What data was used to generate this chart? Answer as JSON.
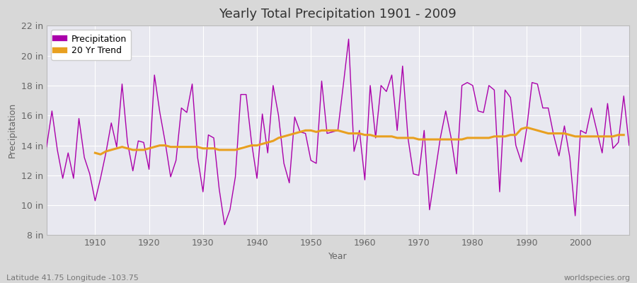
{
  "title": "Yearly Total Precipitation 1901 - 2009",
  "xlabel": "Year",
  "ylabel": "Precipitation",
  "bottom_left_label": "Latitude 41.75 Longitude -103.75",
  "bottom_right_label": "worldspecies.org",
  "ylim": [
    8,
    22
  ],
  "yticks": [
    8,
    10,
    12,
    14,
    16,
    18,
    20,
    22
  ],
  "ytick_labels": [
    "8 in",
    "10 in",
    "12 in",
    "14 in",
    "16 in",
    "18 in",
    "20 in",
    "22 in"
  ],
  "precip_color": "#AA00AA",
  "trend_color": "#E8A020",
  "fig_bg_color": "#D8D8D8",
  "plot_bg_color": "#E8E8F0",
  "grid_color": "#FFFFFF",
  "years": [
    1901,
    1902,
    1903,
    1904,
    1905,
    1906,
    1907,
    1908,
    1909,
    1910,
    1911,
    1912,
    1913,
    1914,
    1915,
    1916,
    1917,
    1918,
    1919,
    1920,
    1921,
    1922,
    1923,
    1924,
    1925,
    1926,
    1927,
    1928,
    1929,
    1930,
    1931,
    1932,
    1933,
    1934,
    1935,
    1936,
    1937,
    1938,
    1939,
    1940,
    1941,
    1942,
    1943,
    1944,
    1945,
    1946,
    1947,
    1948,
    1949,
    1950,
    1951,
    1952,
    1953,
    1954,
    1955,
    1956,
    1957,
    1958,
    1959,
    1960,
    1961,
    1962,
    1963,
    1964,
    1965,
    1966,
    1967,
    1968,
    1969,
    1970,
    1971,
    1972,
    1973,
    1974,
    1975,
    1976,
    1977,
    1978,
    1979,
    1980,
    1981,
    1982,
    1983,
    1984,
    1985,
    1986,
    1987,
    1988,
    1989,
    1990,
    1991,
    1992,
    1993,
    1994,
    1995,
    1996,
    1997,
    1998,
    1999,
    2000,
    2001,
    2002,
    2003,
    2004,
    2005,
    2006,
    2007,
    2008,
    2009
  ],
  "precipitation": [
    13.9,
    16.3,
    13.7,
    11.8,
    13.5,
    11.8,
    15.8,
    13.2,
    12.1,
    10.3,
    11.8,
    13.5,
    15.5,
    13.9,
    18.1,
    14.2,
    12.3,
    14.3,
    14.2,
    12.4,
    18.7,
    16.2,
    14.2,
    11.9,
    13.0,
    16.5,
    16.2,
    18.1,
    13.2,
    10.9,
    14.7,
    14.5,
    11.1,
    8.7,
    9.7,
    11.9,
    17.4,
    17.4,
    14.2,
    11.8,
    16.1,
    13.5,
    18.0,
    16.0,
    12.8,
    11.5,
    15.9,
    14.9,
    14.8,
    13.0,
    12.8,
    18.3,
    14.8,
    14.9,
    15.0,
    18.0,
    21.1,
    13.6,
    15.0,
    11.7,
    18.0,
    14.5,
    18.0,
    17.6,
    18.7,
    15.0,
    19.3,
    14.5,
    12.1,
    12.0,
    15.0,
    9.7,
    12.1,
    14.5,
    16.3,
    14.5,
    12.1,
    18.0,
    18.2,
    18.0,
    16.3,
    16.2,
    18.0,
    17.7,
    10.9,
    17.7,
    17.2,
    14.0,
    12.9,
    15.1,
    18.2,
    18.1,
    16.5,
    16.5,
    14.7,
    13.3,
    15.3,
    13.2,
    9.3,
    15.0,
    14.8,
    16.5,
    15.0,
    13.5,
    16.8,
    13.8,
    14.2,
    17.3,
    14.0
  ],
  "trend": [
    null,
    null,
    null,
    null,
    null,
    null,
    null,
    null,
    null,
    13.5,
    13.4,
    13.6,
    13.7,
    13.8,
    13.9,
    13.8,
    13.7,
    13.7,
    13.7,
    13.8,
    13.9,
    14.0,
    14.0,
    13.9,
    13.9,
    13.9,
    13.9,
    13.9,
    13.9,
    13.8,
    13.8,
    13.8,
    13.7,
    13.7,
    13.7,
    13.7,
    13.8,
    13.9,
    14.0,
    14.0,
    14.1,
    14.2,
    14.3,
    14.5,
    14.6,
    14.7,
    14.8,
    14.9,
    15.0,
    15.0,
    14.9,
    15.0,
    15.0,
    15.0,
    15.0,
    14.9,
    14.8,
    14.8,
    14.8,
    14.7,
    14.7,
    14.6,
    14.6,
    14.6,
    14.6,
    14.5,
    14.5,
    14.5,
    14.5,
    14.4,
    14.4,
    14.4,
    14.4,
    14.4,
    14.4,
    14.4,
    14.4,
    14.4,
    14.5,
    14.5,
    14.5,
    14.5,
    14.5,
    14.6,
    14.6,
    14.6,
    14.7,
    14.7,
    15.1,
    15.2,
    15.1,
    15.0,
    14.9,
    14.8,
    14.8,
    14.8,
    14.8,
    14.7,
    14.6,
    14.6,
    14.6,
    14.6,
    14.6,
    14.6,
    14.6,
    14.6,
    14.7,
    14.7
  ],
  "xlim": [
    1901,
    2009
  ],
  "xticks": [
    1910,
    1920,
    1930,
    1940,
    1950,
    1960,
    1970,
    1980,
    1990,
    2000
  ],
  "title_fontsize": 13,
  "axis_label_fontsize": 9,
  "tick_fontsize": 9,
  "legend_fontsize": 9,
  "annotation_fontsize": 8,
  "precip_linewidth": 1.0,
  "trend_linewidth": 2.2
}
